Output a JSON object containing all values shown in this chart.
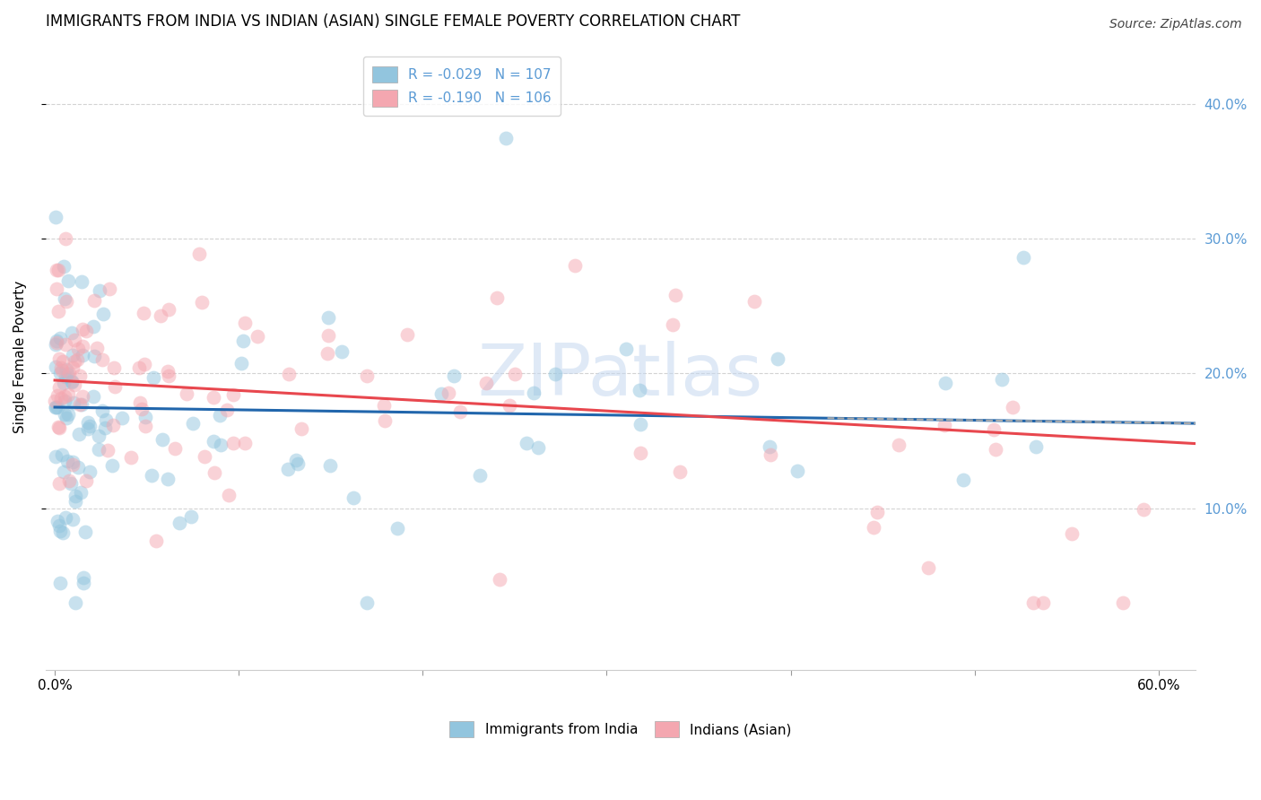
{
  "title": "IMMIGRANTS FROM INDIA VS INDIAN (ASIAN) SINGLE FEMALE POVERTY CORRELATION CHART",
  "source": "Source: ZipAtlas.com",
  "xtick_vals": [
    0.0,
    0.1,
    0.2,
    0.3,
    0.4,
    0.5,
    0.6
  ],
  "xtick_labels_bottom": [
    "0.0%",
    "",
    "",
    "",
    "",
    "",
    "60.0%"
  ],
  "ylabel_ticks": [
    "10.0%",
    "20.0%",
    "30.0%",
    "40.0%"
  ],
  "ylabel_vals": [
    0.1,
    0.2,
    0.3,
    0.4
  ],
  "xlim": [
    -0.005,
    0.62
  ],
  "ylim": [
    -0.02,
    0.445
  ],
  "ylabel": "Single Female Poverty",
  "legend_labels": [
    "Immigrants from India",
    "Indians (Asian)"
  ],
  "series1_label": "R = -0.029   N = 107",
  "series2_label": "R = -0.190   N = 106",
  "blue_color": "#92c5de",
  "pink_color": "#f4a7b0",
  "trend1_color": "#2166ac",
  "trend2_color": "#e8474e",
  "title_fontsize": 12,
  "source_fontsize": 10,
  "axis_label_fontsize": 11,
  "tick_fontsize": 11,
  "legend_fontsize": 11,
  "background_color": "#ffffff",
  "grid_color": "#d3d3d3",
  "right_tick_color": "#5b9bd5",
  "series1_R": -0.029,
  "series1_N": 107,
  "series2_R": -0.19,
  "series2_N": 106,
  "trend1_y_start": 0.175,
  "trend1_y_end": 0.163,
  "trend2_y_start": 0.195,
  "trend2_y_end": 0.148,
  "watermark": "ZIPatlas",
  "watermark_color": "#c5d8f0"
}
